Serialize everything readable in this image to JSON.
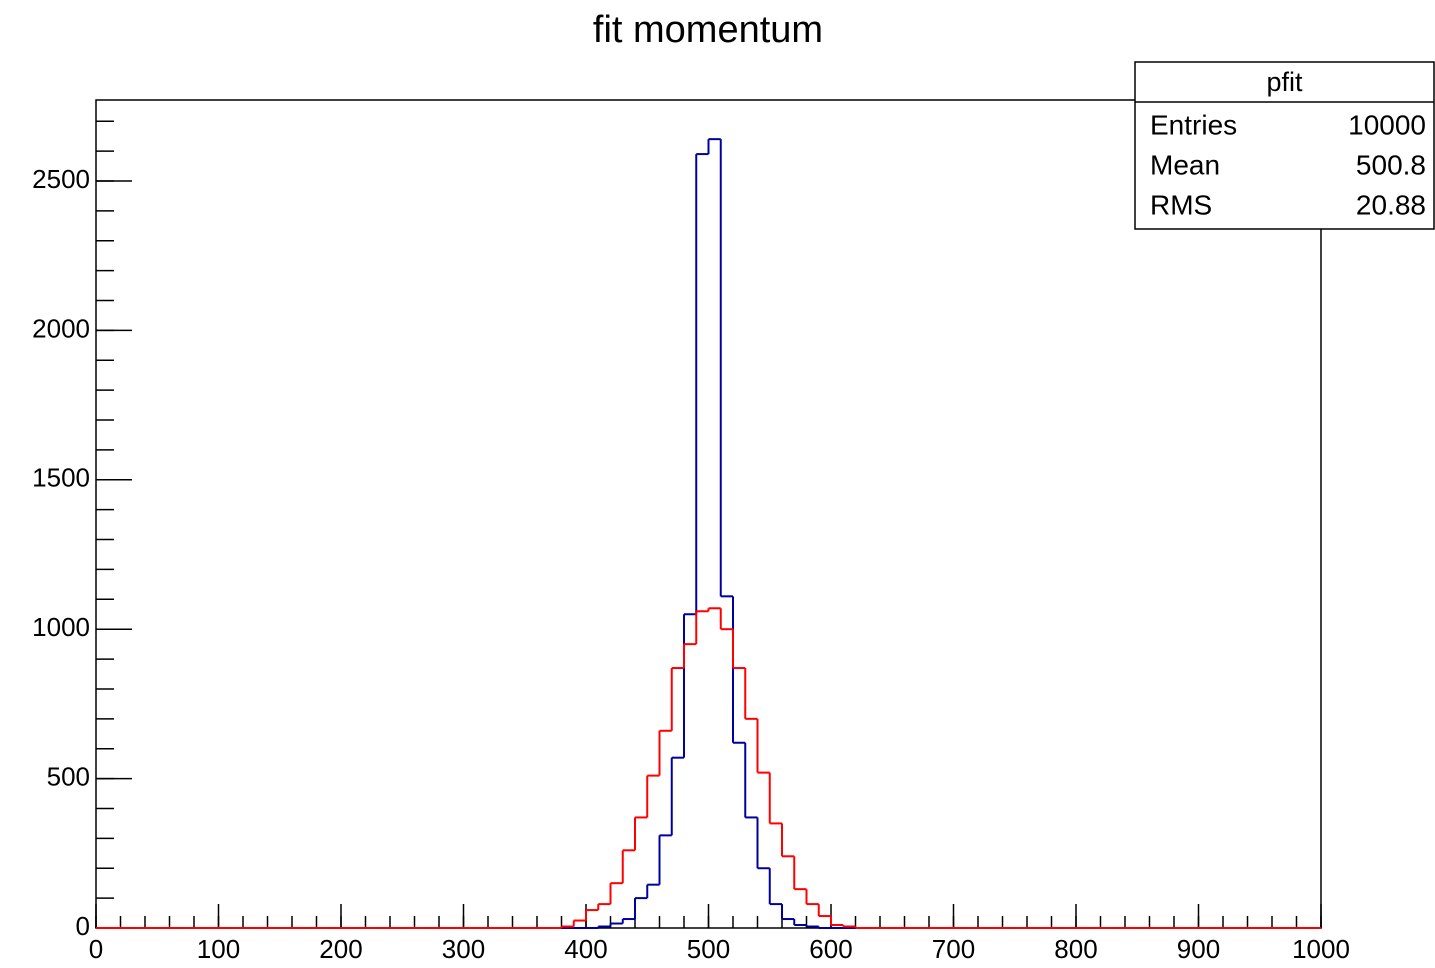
{
  "chart_data": {
    "type": "histogram",
    "title": "fit momentum",
    "bins": [
      0,
      10,
      20,
      30,
      40,
      50,
      60,
      70,
      80,
      90,
      100,
      110,
      120,
      130,
      140,
      150,
      160,
      170,
      180,
      190,
      200,
      210,
      220,
      230,
      240,
      250,
      260,
      270,
      280,
      290,
      300,
      310,
      320,
      330,
      340,
      350,
      360,
      370,
      380,
      390,
      400,
      410,
      420,
      430,
      440,
      450,
      460,
      470,
      480,
      490,
      500,
      510,
      520,
      530,
      540,
      550,
      560,
      570,
      580,
      590,
      600,
      610,
      620,
      630,
      640,
      650,
      660,
      670,
      680,
      690,
      700,
      710,
      720,
      730,
      740,
      750,
      760,
      770,
      780,
      790,
      800,
      810,
      820,
      830,
      840,
      850,
      860,
      870,
      880,
      890,
      900,
      910,
      920,
      930,
      940,
      950,
      960,
      970,
      980,
      990,
      1000
    ],
    "series": [
      {
        "color": "#0000a0",
        "values": [
          0,
          0,
          0,
          0,
          0,
          0,
          0,
          0,
          0,
          0,
          0,
          0,
          0,
          0,
          0,
          0,
          0,
          0,
          0,
          0,
          0,
          0,
          0,
          0,
          0,
          0,
          0,
          0,
          0,
          0,
          0,
          0,
          0,
          0,
          0,
          0,
          0,
          0,
          0,
          0,
          0,
          5,
          15,
          30,
          100,
          145,
          310,
          570,
          1050,
          2590,
          2640,
          1110,
          620,
          370,
          200,
          80,
          30,
          10,
          5,
          0,
          0,
          0,
          0,
          0,
          0,
          0,
          0,
          0,
          0,
          0,
          0,
          0,
          0,
          0,
          0,
          0,
          0,
          0,
          0,
          0,
          0,
          0,
          0,
          0,
          0,
          0,
          0,
          0,
          0,
          0,
          0,
          0,
          0,
          0,
          0,
          0,
          0,
          0,
          0,
          0
        ]
      },
      {
        "color": "#ff0000",
        "values": [
          0,
          0,
          0,
          0,
          0,
          0,
          0,
          0,
          0,
          0,
          0,
          0,
          0,
          0,
          0,
          0,
          0,
          0,
          0,
          0,
          0,
          0,
          0,
          0,
          0,
          0,
          0,
          0,
          0,
          0,
          0,
          0,
          0,
          0,
          0,
          0,
          0,
          0,
          5,
          25,
          60,
          80,
          150,
          260,
          370,
          510,
          660,
          870,
          950,
          1060,
          1070,
          1000,
          870,
          700,
          520,
          350,
          240,
          130,
          80,
          40,
          10,
          5,
          0,
          0,
          0,
          0,
          0,
          0,
          0,
          0,
          0,
          0,
          0,
          0,
          0,
          0,
          0,
          0,
          0,
          0,
          0,
          0,
          0,
          0,
          0,
          0,
          0,
          0,
          0,
          0,
          0,
          0,
          0,
          0,
          0,
          0,
          0,
          0,
          0,
          0
        ]
      }
    ],
    "xlim": [
      0,
      1000
    ],
    "xticks": [
      0,
      100,
      200,
      300,
      400,
      500,
      600,
      700,
      800,
      900,
      1000
    ],
    "xminorticks": [
      0,
      20,
      40,
      60,
      80,
      100,
      120,
      140,
      160,
      180,
      200,
      220,
      240,
      260,
      280,
      300,
      320,
      340,
      360,
      380,
      400,
      420,
      440,
      460,
      480,
      500,
      520,
      540,
      560,
      580,
      600,
      620,
      640,
      660,
      680,
      700,
      720,
      740,
      760,
      780,
      800,
      820,
      840,
      860,
      880,
      900,
      920,
      940,
      960,
      980,
      1000
    ],
    "ylim": [
      0,
      2771
    ],
    "yticks": [
      0,
      500,
      1000,
      1500,
      2000,
      2500
    ],
    "yminorticks": [
      0,
      100,
      200,
      300,
      400,
      500,
      600,
      700,
      800,
      900,
      1000,
      1100,
      1200,
      1300,
      1400,
      1500,
      1600,
      1700,
      1800,
      1900,
      2000,
      2100,
      2200,
      2300,
      2400,
      2500,
      2600,
      2700
    ],
    "stats": {
      "title": "pfit",
      "rows": [
        [
          "Entries",
          10000
        ],
        [
          "Mean",
          500.8
        ],
        [
          "RMS",
          20.88
        ]
      ]
    }
  }
}
